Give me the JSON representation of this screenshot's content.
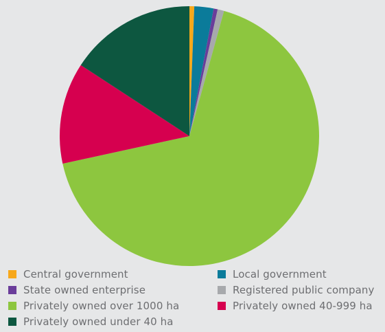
{
  "chart_data": {
    "type": "pie",
    "title": "",
    "slices": [
      {
        "label": "Central government",
        "value": 0.6,
        "color": "#f7a81b"
      },
      {
        "label": "Local government",
        "value": 2.4,
        "color": "#0b7b9a"
      },
      {
        "label": "State owned enterprise",
        "value": 0.5,
        "color": "#6a3d9a"
      },
      {
        "label": "Registered public company",
        "value": 0.8,
        "color": "#a7a9ac"
      },
      {
        "label": "Privately owned over 1000 ha",
        "value": 67.3,
        "color": "#8dc63f"
      },
      {
        "label": "Privately owned 40-999 ha",
        "value": 12.6,
        "color": "#d6004f"
      },
      {
        "label": "Privately owned under 40 ha",
        "value": 15.8,
        "color": "#0d5740"
      }
    ],
    "legend_position": "bottom"
  }
}
